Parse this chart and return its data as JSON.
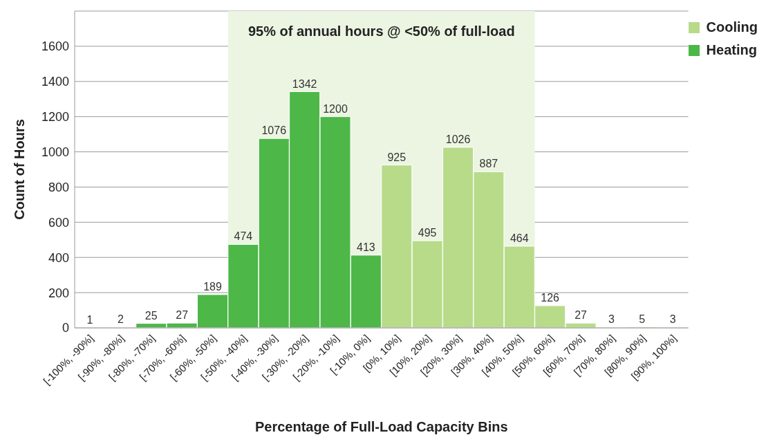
{
  "chart_data": {
    "type": "bar",
    "xlabel": "Percentage of Full-Load Capacity Bins",
    "ylabel": "Count of Hours",
    "categories": [
      "[-100%, -90%]",
      "[-90%, -80%]",
      "[-80%, -70%]",
      "[-70%, -60%]",
      "[-60%, -50%]",
      "[-50%, -40%]",
      "[-40%, -30%]",
      "[-30%, -20%]",
      "[-20%, -10%]",
      "[-10%, 0%]",
      "[0%, 10%]",
      "[10%, 20%]",
      "[20%, 30%]",
      "[30%, 40%]",
      "[40%, 50%]",
      "[50%, 60%]",
      "[60%, 70%]",
      "[70%, 80%]",
      "[80%, 90%]",
      "[90%, 100%]"
    ],
    "series": [
      {
        "name": "Cooling",
        "color": "#b8db8a",
        "values": [
          null,
          null,
          null,
          null,
          null,
          null,
          null,
          null,
          null,
          null,
          925,
          495,
          1026,
          887,
          464,
          126,
          27,
          3,
          5,
          3
        ]
      },
      {
        "name": "Heating",
        "color": "#4db748",
        "values": [
          1,
          2,
          25,
          27,
          189,
          474,
          1076,
          1342,
          1200,
          413,
          null,
          null,
          null,
          null,
          null,
          null,
          null,
          null,
          null,
          null
        ]
      }
    ],
    "stacked": true,
    "ylim": [
      0,
      1800
    ],
    "yticks": [
      0,
      200,
      400,
      600,
      800,
      1000,
      1200,
      1400,
      1600
    ],
    "grid": "y",
    "legend": "top right",
    "data_labels": true,
    "bands": [
      {
        "axis": "x",
        "from": "[-50%, -40%]",
        "to": "[40%, 50%]",
        "label": "95% of annual hours @ <50% of full-load",
        "color": "#ecf5e2"
      }
    ]
  }
}
